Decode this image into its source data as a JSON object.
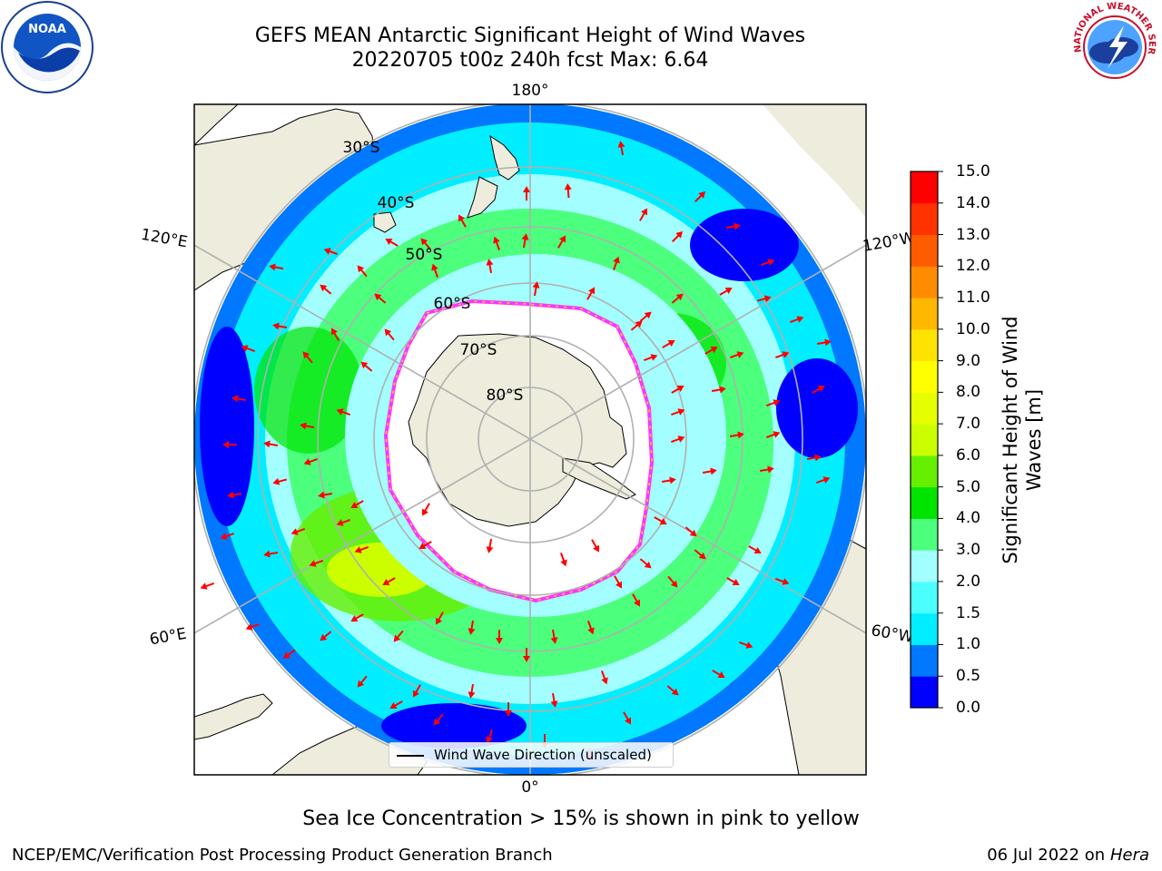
{
  "title": {
    "line1": "GEFS MEAN Antarctic Significant Height of Wind Waves",
    "line2": "20220705 t00z 240h fcst   Max: 6.64"
  },
  "logos": {
    "left": "NOAA",
    "right": "NATIONAL WEATHER SERVICE"
  },
  "map": {
    "longitude_labels": [
      "180°",
      "120°E",
      "120°W",
      "60°E",
      "60°W",
      "0°"
    ],
    "latitude_labels": [
      "30°S",
      "40°S",
      "50°S",
      "60°S",
      "70°S",
      "80°S"
    ],
    "legend": "Wind Wave Direction (unscaled)",
    "arrow_color": "#ff0000",
    "land_color": "#eeecdc",
    "ice_edge_colors": [
      "#ff33ff",
      "#ffcc33"
    ]
  },
  "colorbar": {
    "label": "Significant Height of Wind Waves [m]",
    "ticks": [
      "0.0",
      "0.5",
      "1.0",
      "1.5",
      "2.0",
      "3.0",
      "4.0",
      "5.0",
      "6.0",
      "7.0",
      "8.0",
      "9.0",
      "10.0",
      "11.0",
      "12.0",
      "13.0",
      "14.0",
      "15.0"
    ],
    "colors": [
      "#0000ff",
      "#0078ff",
      "#00eeff",
      "#4cffff",
      "#a3ffff",
      "#4cff7d",
      "#00e400",
      "#66ef00",
      "#cbff00",
      "#e6ff00",
      "#ffff00",
      "#ffe300",
      "#ffb700",
      "#ff8c00",
      "#ff5c00",
      "#ff3200",
      "#ff0000"
    ]
  },
  "footnote": "Sea Ice Concentration > 15% is shown in pink to yellow",
  "credit": "NCEP/EMC/Verification Post Processing Product Generation Branch",
  "date_prefix": "06 Jul 2022 on ",
  "date_host": "Hera"
}
